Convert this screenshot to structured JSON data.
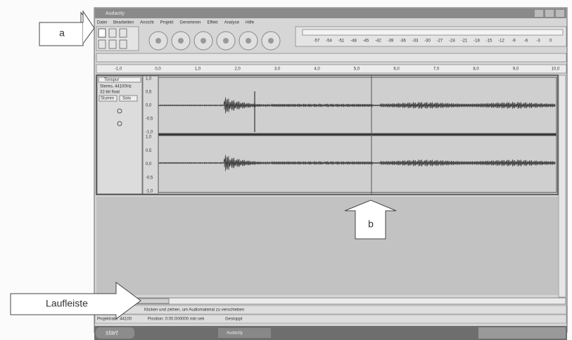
{
  "annotations": {
    "toolbar_label": "a",
    "cursor_label": "b",
    "scrollbar_label": "Laufleiste"
  },
  "window": {
    "title": "Audacity",
    "menu": [
      "Datei",
      "Bearbeiten",
      "Ansicht",
      "Projekt",
      "Generieren",
      "Effekt",
      "Analyse",
      "Hilfe"
    ],
    "ruler": [
      "-1,0",
      "0,0",
      "1,0",
      "2,0",
      "3,0",
      "4,0",
      "5,0",
      "6,0",
      "7,0",
      "8,0",
      "9,0",
      "10,0"
    ],
    "meter": [
      "-57",
      "-54",
      "-51",
      "-48",
      "-45",
      "-42",
      "-39",
      "-36",
      "-33",
      "-30",
      "-27",
      "-24",
      "-21",
      "-18",
      "-15",
      "-12",
      "-9",
      "-6",
      "-3",
      "0"
    ],
    "track": {
      "name": "Tonspur",
      "format": "Stereo, 44100Hz",
      "bits": "32-bit float",
      "mute": "Stumm",
      "solo": "Solo",
      "scale": [
        "1,0",
        "0,5",
        "0,0",
        "-0,5",
        "-1,0"
      ]
    },
    "status": {
      "message": "Klicken und ziehen, um Audiomaterial zu verschieben",
      "rate": "Projektrate: 44100",
      "position": "Position: 0:00.000000 min:sek",
      "state": "Gestoppt"
    },
    "taskbar": {
      "start": "start",
      "task": "Audacity"
    }
  }
}
